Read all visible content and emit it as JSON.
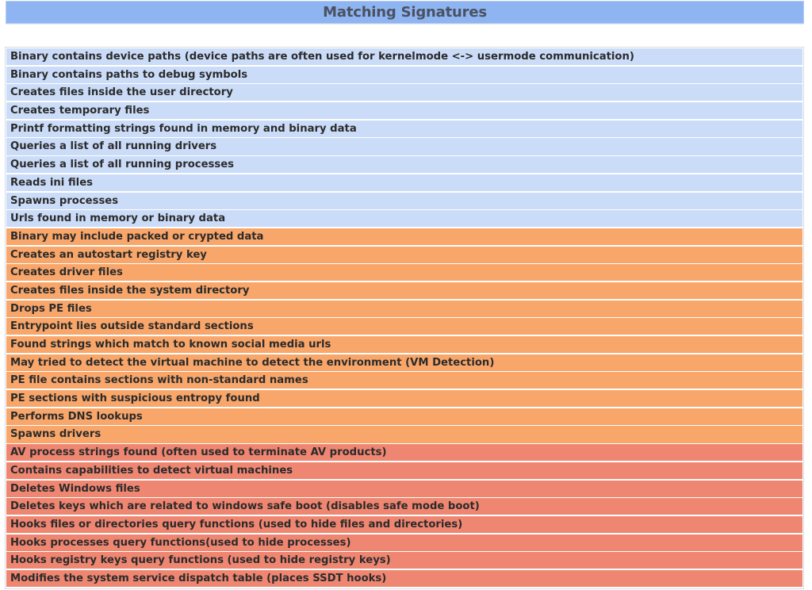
{
  "header": {
    "title": "Matching Signatures"
  },
  "colors": {
    "header_bg": "#8eb4f2",
    "informative": "#cbdcf8",
    "suspicious": "#f8a66a",
    "malicious": "#ef8671"
  },
  "signatures": [
    {
      "label": "Binary contains device paths (device paths are often used for kernelmode <-> usermode communication)",
      "severity": "informative"
    },
    {
      "label": "Binary contains paths to debug symbols",
      "severity": "informative"
    },
    {
      "label": "Creates files inside the user directory",
      "severity": "informative"
    },
    {
      "label": "Creates temporary files",
      "severity": "informative"
    },
    {
      "label": "Printf formatting strings found in memory and binary data",
      "severity": "informative"
    },
    {
      "label": "Queries a list of all running drivers",
      "severity": "informative"
    },
    {
      "label": "Queries a list of all running processes",
      "severity": "informative"
    },
    {
      "label": "Reads ini files",
      "severity": "informative"
    },
    {
      "label": "Spawns processes",
      "severity": "informative"
    },
    {
      "label": "Urls found in memory or binary data",
      "severity": "informative"
    },
    {
      "label": "Binary may include packed or crypted data",
      "severity": "suspicious"
    },
    {
      "label": "Creates an autostart registry key",
      "severity": "suspicious"
    },
    {
      "label": "Creates driver files",
      "severity": "suspicious"
    },
    {
      "label": "Creates files inside the system directory",
      "severity": "suspicious"
    },
    {
      "label": "Drops PE files",
      "severity": "suspicious"
    },
    {
      "label": "Entrypoint lies outside standard sections",
      "severity": "suspicious"
    },
    {
      "label": "Found strings which match to known social media urls",
      "severity": "suspicious"
    },
    {
      "label": "May tried to detect the virtual machine to detect the environment (VM Detection)",
      "severity": "suspicious"
    },
    {
      "label": "PE file contains sections with non-standard names",
      "severity": "suspicious"
    },
    {
      "label": "PE sections with suspicious entropy found",
      "severity": "suspicious"
    },
    {
      "label": "Performs DNS lookups",
      "severity": "suspicious"
    },
    {
      "label": "Spawns drivers",
      "severity": "suspicious"
    },
    {
      "label": "AV process strings found (often used to terminate AV products)",
      "severity": "malicious"
    },
    {
      "label": "Contains capabilities to detect virtual machines",
      "severity": "malicious"
    },
    {
      "label": "Deletes Windows files",
      "severity": "malicious"
    },
    {
      "label": "Deletes keys which are related to windows safe boot (disables safe mode boot)",
      "severity": "malicious"
    },
    {
      "label": "Hooks files or directories query functions (used to hide files and directories)",
      "severity": "malicious"
    },
    {
      "label": "Hooks processes query functions(used to hide processes)",
      "severity": "malicious"
    },
    {
      "label": "Hooks registry keys query functions (used to hide registry keys)",
      "severity": "malicious"
    },
    {
      "label": "Modifies the system service dispatch table (places SSDT hooks)",
      "severity": "malicious"
    }
  ]
}
